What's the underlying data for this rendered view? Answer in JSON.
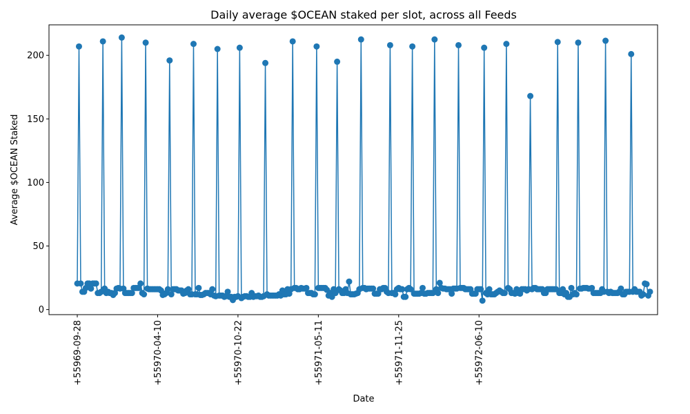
{
  "chart_data": {
    "type": "line",
    "title": "Daily average $OCEAN staked per slot, across all Feeds",
    "xlabel": "Date",
    "ylabel": "Average $OCEAN Staked",
    "ylim": [
      -4,
      224
    ],
    "y_ticks": [
      0,
      50,
      100,
      150,
      200
    ],
    "x_tick_labels": [
      "+55969-09-28",
      "+55970-04-10",
      "+55970-10-22",
      "+55971-05-11",
      "+55971-11-25",
      "+55972-06-10"
    ],
    "x_tick_index": [
      0,
      47,
      94,
      141,
      188,
      235
    ],
    "grid": false,
    "legend": "none",
    "color": "#1f77b4",
    "series": [
      {
        "values": [
          20.5,
          207,
          20.5,
          14,
          14,
          17,
          20.5,
          20.5,
          16.5,
          20.5,
          20.5,
          20.5,
          13,
          13,
          14,
          211,
          16.5,
          13,
          14,
          13,
          13,
          11.5,
          13,
          16.5,
          17,
          16.5,
          214,
          16.5,
          13,
          13,
          13,
          13,
          13,
          17,
          17,
          17,
          17,
          20.5,
          13,
          12,
          210,
          16.5,
          16,
          16,
          16,
          16,
          16,
          16,
          16,
          15,
          11.5,
          12,
          13,
          16,
          196,
          12,
          16,
          16,
          16,
          15,
          15,
          15,
          12.5,
          13,
          15,
          16,
          12,
          12,
          209,
          12,
          12,
          17,
          11.5,
          11.5,
          12,
          13,
          13,
          13,
          12,
          16,
          11,
          10.5,
          205,
          11,
          11,
          11,
          10,
          10.5,
          14,
          10,
          10,
          7.5,
          10,
          10,
          10.5,
          206,
          9,
          10,
          10.5,
          10.5,
          10,
          10,
          13,
          10,
          10.5,
          10.5,
          11,
          10,
          10,
          10.5,
          194,
          12,
          11,
          11,
          11,
          11,
          11,
          11,
          12,
          11,
          15,
          12,
          12,
          16,
          12.5,
          16,
          211,
          17,
          17,
          16,
          16,
          17,
          16.5,
          16.5,
          17,
          13,
          13,
          13,
          12,
          12,
          207,
          17,
          17,
          17,
          17,
          17,
          15.5,
          11,
          13,
          10,
          16,
          13,
          195,
          16,
          15,
          13,
          13,
          16,
          13,
          22,
          12,
          12,
          12,
          12.5,
          13,
          16,
          212.5,
          17,
          17,
          16,
          16.5,
          16.5,
          16.5,
          16.5,
          12.5,
          12.5,
          12.5,
          16,
          16,
          17,
          17,
          14,
          13,
          208,
          13,
          13,
          12,
          16,
          17,
          16,
          16,
          10,
          10,
          16,
          17,
          16,
          207,
          12.5,
          12.5,
          12.5,
          12.5,
          13,
          17,
          12.5,
          12.5,
          13,
          13,
          13,
          13,
          212.5,
          16,
          13,
          21,
          17,
          16.5,
          16.5,
          16,
          16,
          16,
          12.5,
          16.5,
          16.5,
          16.5,
          208,
          17,
          17,
          17,
          16,
          16,
          16,
          16,
          12.5,
          12.5,
          12.5,
          16,
          16,
          16,
          7,
          206,
          13,
          12,
          16,
          12,
          12,
          12,
          13,
          14,
          15,
          14,
          13,
          13,
          209,
          17,
          16,
          13,
          13,
          12.5,
          16,
          13,
          12.5,
          16,
          16,
          16,
          15,
          16,
          168,
          16,
          17,
          17,
          16,
          16,
          16,
          16,
          13,
          13,
          16,
          16,
          16,
          16,
          16,
          16,
          210.5,
          13,
          13,
          16,
          12,
          13,
          10,
          10,
          17,
          12,
          13,
          12,
          210,
          16.5,
          16.5,
          17,
          17,
          17,
          16.5,
          16.5,
          17,
          13,
          13,
          13,
          13,
          13,
          16,
          14,
          211.5,
          14,
          13,
          14,
          13,
          13,
          13,
          13,
          14,
          16.5,
          12,
          12,
          14,
          14,
          14,
          201,
          14,
          16,
          14,
          14,
          14,
          11,
          12,
          20.5,
          20,
          11,
          14
        ]
      }
    ]
  }
}
